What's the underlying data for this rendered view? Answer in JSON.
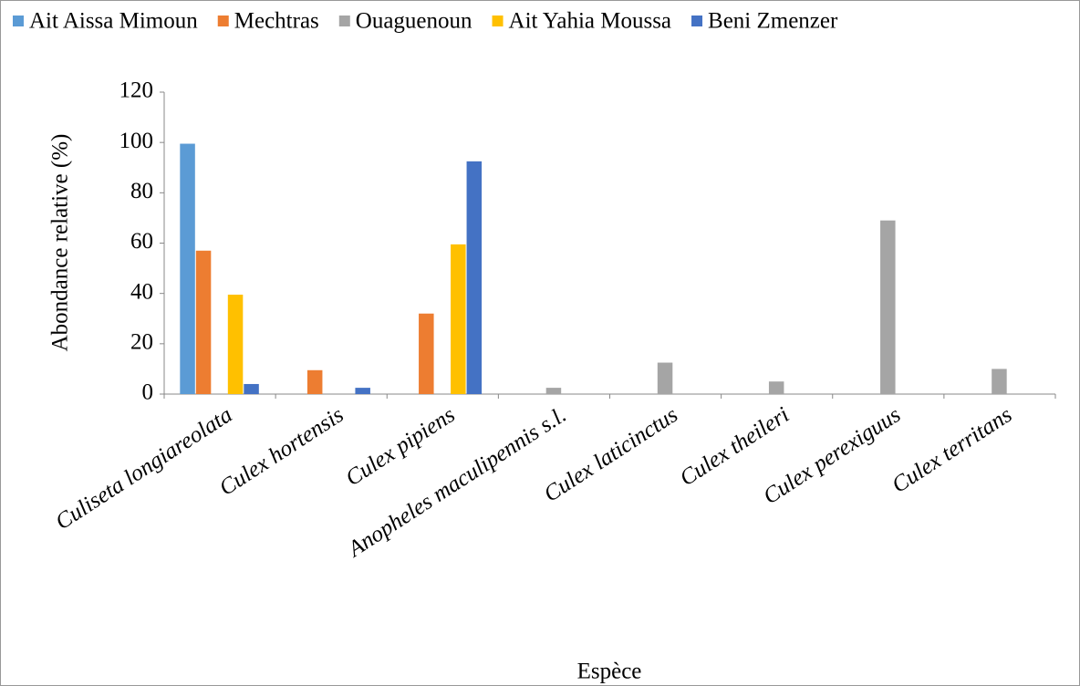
{
  "chart_data": {
    "type": "bar",
    "xlabel": "Espèce",
    "ylabel": "Abondance relative (%)",
    "categories": [
      "Culiseta longiareolata",
      "Culex hortensis",
      "Culex pipiens",
      "Anopheles maculipennis s.l.",
      "Culex laticinctus",
      "Culex theileri",
      "Culex perexiguus",
      "Culex territans"
    ],
    "series": [
      {
        "name": "Ait Aissa Mimoun",
        "color": "#5b9bd5",
        "values": [
          99.5,
          0,
          0,
          0,
          0,
          0,
          0,
          0
        ]
      },
      {
        "name": "Mechtras",
        "color": "#ed7d31",
        "values": [
          57,
          9.5,
          32,
          0,
          0,
          0,
          0,
          0
        ]
      },
      {
        "name": "Ouaguenoun",
        "color": "#a5a5a5",
        "values": [
          0,
          0,
          0,
          2.5,
          12.5,
          5,
          69,
          10
        ]
      },
      {
        "name": "Ait Yahia Moussa",
        "color": "#ffc000",
        "values": [
          39.5,
          0,
          59.5,
          0,
          0,
          0,
          0,
          0
        ]
      },
      {
        "name": "Beni Zmenzer",
        "color": "#4472c4",
        "values": [
          4,
          2.5,
          92.5,
          0,
          0,
          0,
          0,
          0
        ]
      }
    ],
    "ylim": [
      0,
      120
    ],
    "yticks": [
      0,
      20,
      40,
      60,
      80,
      100,
      120
    ],
    "grid": false,
    "legend": "top"
  }
}
